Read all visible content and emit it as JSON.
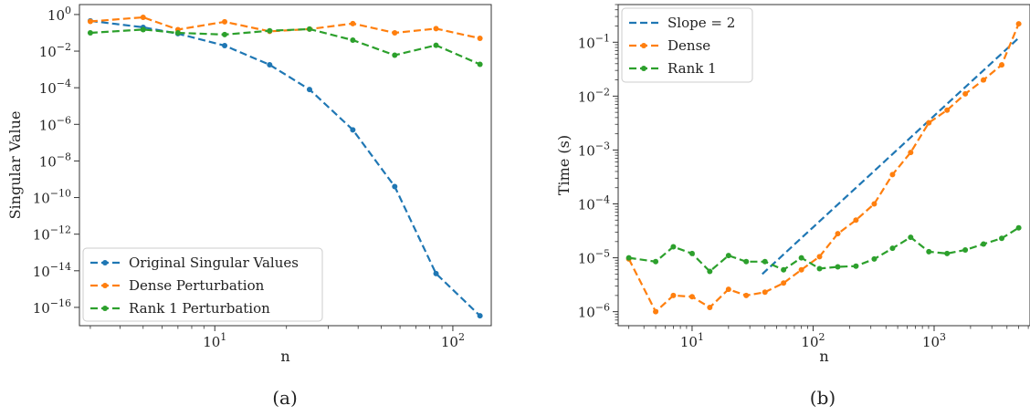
{
  "chart_data": [
    {
      "type": "line",
      "caption": "(a)",
      "xlabel": "n",
      "ylabel": "Singular Value",
      "x_scale": "log",
      "y_scale": "log",
      "xlim": [
        2.7,
        145
      ],
      "ylim": [
        1e-17,
        3.5
      ],
      "x_ticks": [
        {
          "value": 10,
          "mantissa": "10",
          "exp": "1"
        },
        {
          "value": 100,
          "mantissa": "10",
          "exp": "2"
        }
      ],
      "y_ticks": [
        {
          "value": 1,
          "mantissa": "10",
          "exp": "0"
        },
        {
          "value": 0.01,
          "mantissa": "10",
          "exp": "−2"
        },
        {
          "value": 0.0001,
          "mantissa": "10",
          "exp": "−4"
        },
        {
          "value": 1e-06,
          "mantissa": "10",
          "exp": "−6"
        },
        {
          "value": 1e-08,
          "mantissa": "10",
          "exp": "−8"
        },
        {
          "value": 1e-10,
          "mantissa": "10",
          "exp": "−10"
        },
        {
          "value": 1e-12,
          "mantissa": "10",
          "exp": "−12"
        },
        {
          "value": 1e-14,
          "mantissa": "10",
          "exp": "−14"
        },
        {
          "value": 1e-16,
          "mantissa": "10",
          "exp": "−16"
        }
      ],
      "legend": "bottom-left",
      "grid": false,
      "series": [
        {
          "name": "Original Singular Values",
          "color": "#1f77b4",
          "x": [
            3,
            5,
            7,
            11,
            17,
            25,
            38,
            57,
            85,
            130
          ],
          "y": [
            0.45,
            0.2,
            0.09,
            0.02,
            0.0018,
            8e-05,
            5e-07,
            4e-10,
            7e-15,
            3.5e-17
          ]
        },
        {
          "name": "Dense Perturbation",
          "color": "#ff7f0e",
          "x": [
            3,
            5,
            7,
            11,
            17,
            25,
            38,
            57,
            85,
            130
          ],
          "y": [
            0.42,
            0.7,
            0.15,
            0.4,
            0.12,
            0.16,
            0.32,
            0.1,
            0.17,
            0.05
          ]
        },
        {
          "name": "Rank 1 Perturbation",
          "color": "#2ca02c",
          "x": [
            3,
            5,
            7,
            11,
            17,
            25,
            38,
            57,
            85,
            130
          ],
          "y": [
            0.1,
            0.15,
            0.1,
            0.08,
            0.13,
            0.16,
            0.04,
            0.006,
            0.021,
            0.0019
          ]
        }
      ]
    },
    {
      "type": "line",
      "caption": "(b)",
      "xlabel": "n",
      "ylabel": "Time (s)",
      "x_scale": "log",
      "y_scale": "log",
      "xlim": [
        2.45,
        6200
      ],
      "ylim": [
        5.5e-07,
        0.5
      ],
      "x_ticks": [
        {
          "value": 10,
          "mantissa": "10",
          "exp": "1"
        },
        {
          "value": 100,
          "mantissa": "10",
          "exp": "2"
        },
        {
          "value": 1000,
          "mantissa": "10",
          "exp": "3"
        }
      ],
      "y_ticks": [
        {
          "value": 0.1,
          "mantissa": "10",
          "exp": "−1"
        },
        {
          "value": 0.01,
          "mantissa": "10",
          "exp": "−2"
        },
        {
          "value": 0.001,
          "mantissa": "10",
          "exp": "−3"
        },
        {
          "value": 0.0001,
          "mantissa": "10",
          "exp": "−4"
        },
        {
          "value": 1e-05,
          "mantissa": "10",
          "exp": "−5"
        },
        {
          "value": 1e-06,
          "mantissa": "10",
          "exp": "−6"
        }
      ],
      "legend": "top-left",
      "grid": false,
      "series": [
        {
          "name": "Slope = 2",
          "color": "#1f77b4",
          "markers": false,
          "x": [
            38,
            5000
          ],
          "y": [
            5e-06,
            0.12
          ]
        },
        {
          "name": "Dense",
          "color": "#ff7f0e",
          "x": [
            3,
            5,
            7,
            10,
            14,
            20,
            28,
            40,
            57,
            80,
            113,
            160,
            226,
            320,
            453,
            640,
            905,
            1280,
            1810,
            2560,
            3620,
            5000
          ],
          "y": [
            9.5e-06,
            1e-06,
            2e-06,
            1.9e-06,
            1.2e-06,
            2.6e-06,
            2e-06,
            2.3e-06,
            3.4e-06,
            6e-06,
            1.05e-05,
            2.8e-05,
            5e-05,
            0.0001,
            0.00035,
            0.0009,
            0.0032,
            0.0055,
            0.011,
            0.02,
            0.038,
            0.22
          ]
        },
        {
          "name": "Rank 1",
          "color": "#2ca02c",
          "x": [
            3,
            5,
            7,
            10,
            14,
            20,
            28,
            40,
            57,
            80,
            113,
            160,
            226,
            320,
            453,
            640,
            905,
            1280,
            1810,
            2560,
            3620,
            5000
          ],
          "y": [
            1e-05,
            8.5e-06,
            1.6e-05,
            1.2e-05,
            5.6e-06,
            1.1e-05,
            8.5e-06,
            8.5e-06,
            6e-06,
            1e-05,
            6.3e-06,
            6.8e-06,
            7e-06,
            9.5e-06,
            1.5e-05,
            2.4e-05,
            1.3e-05,
            1.2e-05,
            1.4e-05,
            1.8e-05,
            2.3e-05,
            3.6e-05
          ]
        }
      ]
    }
  ]
}
